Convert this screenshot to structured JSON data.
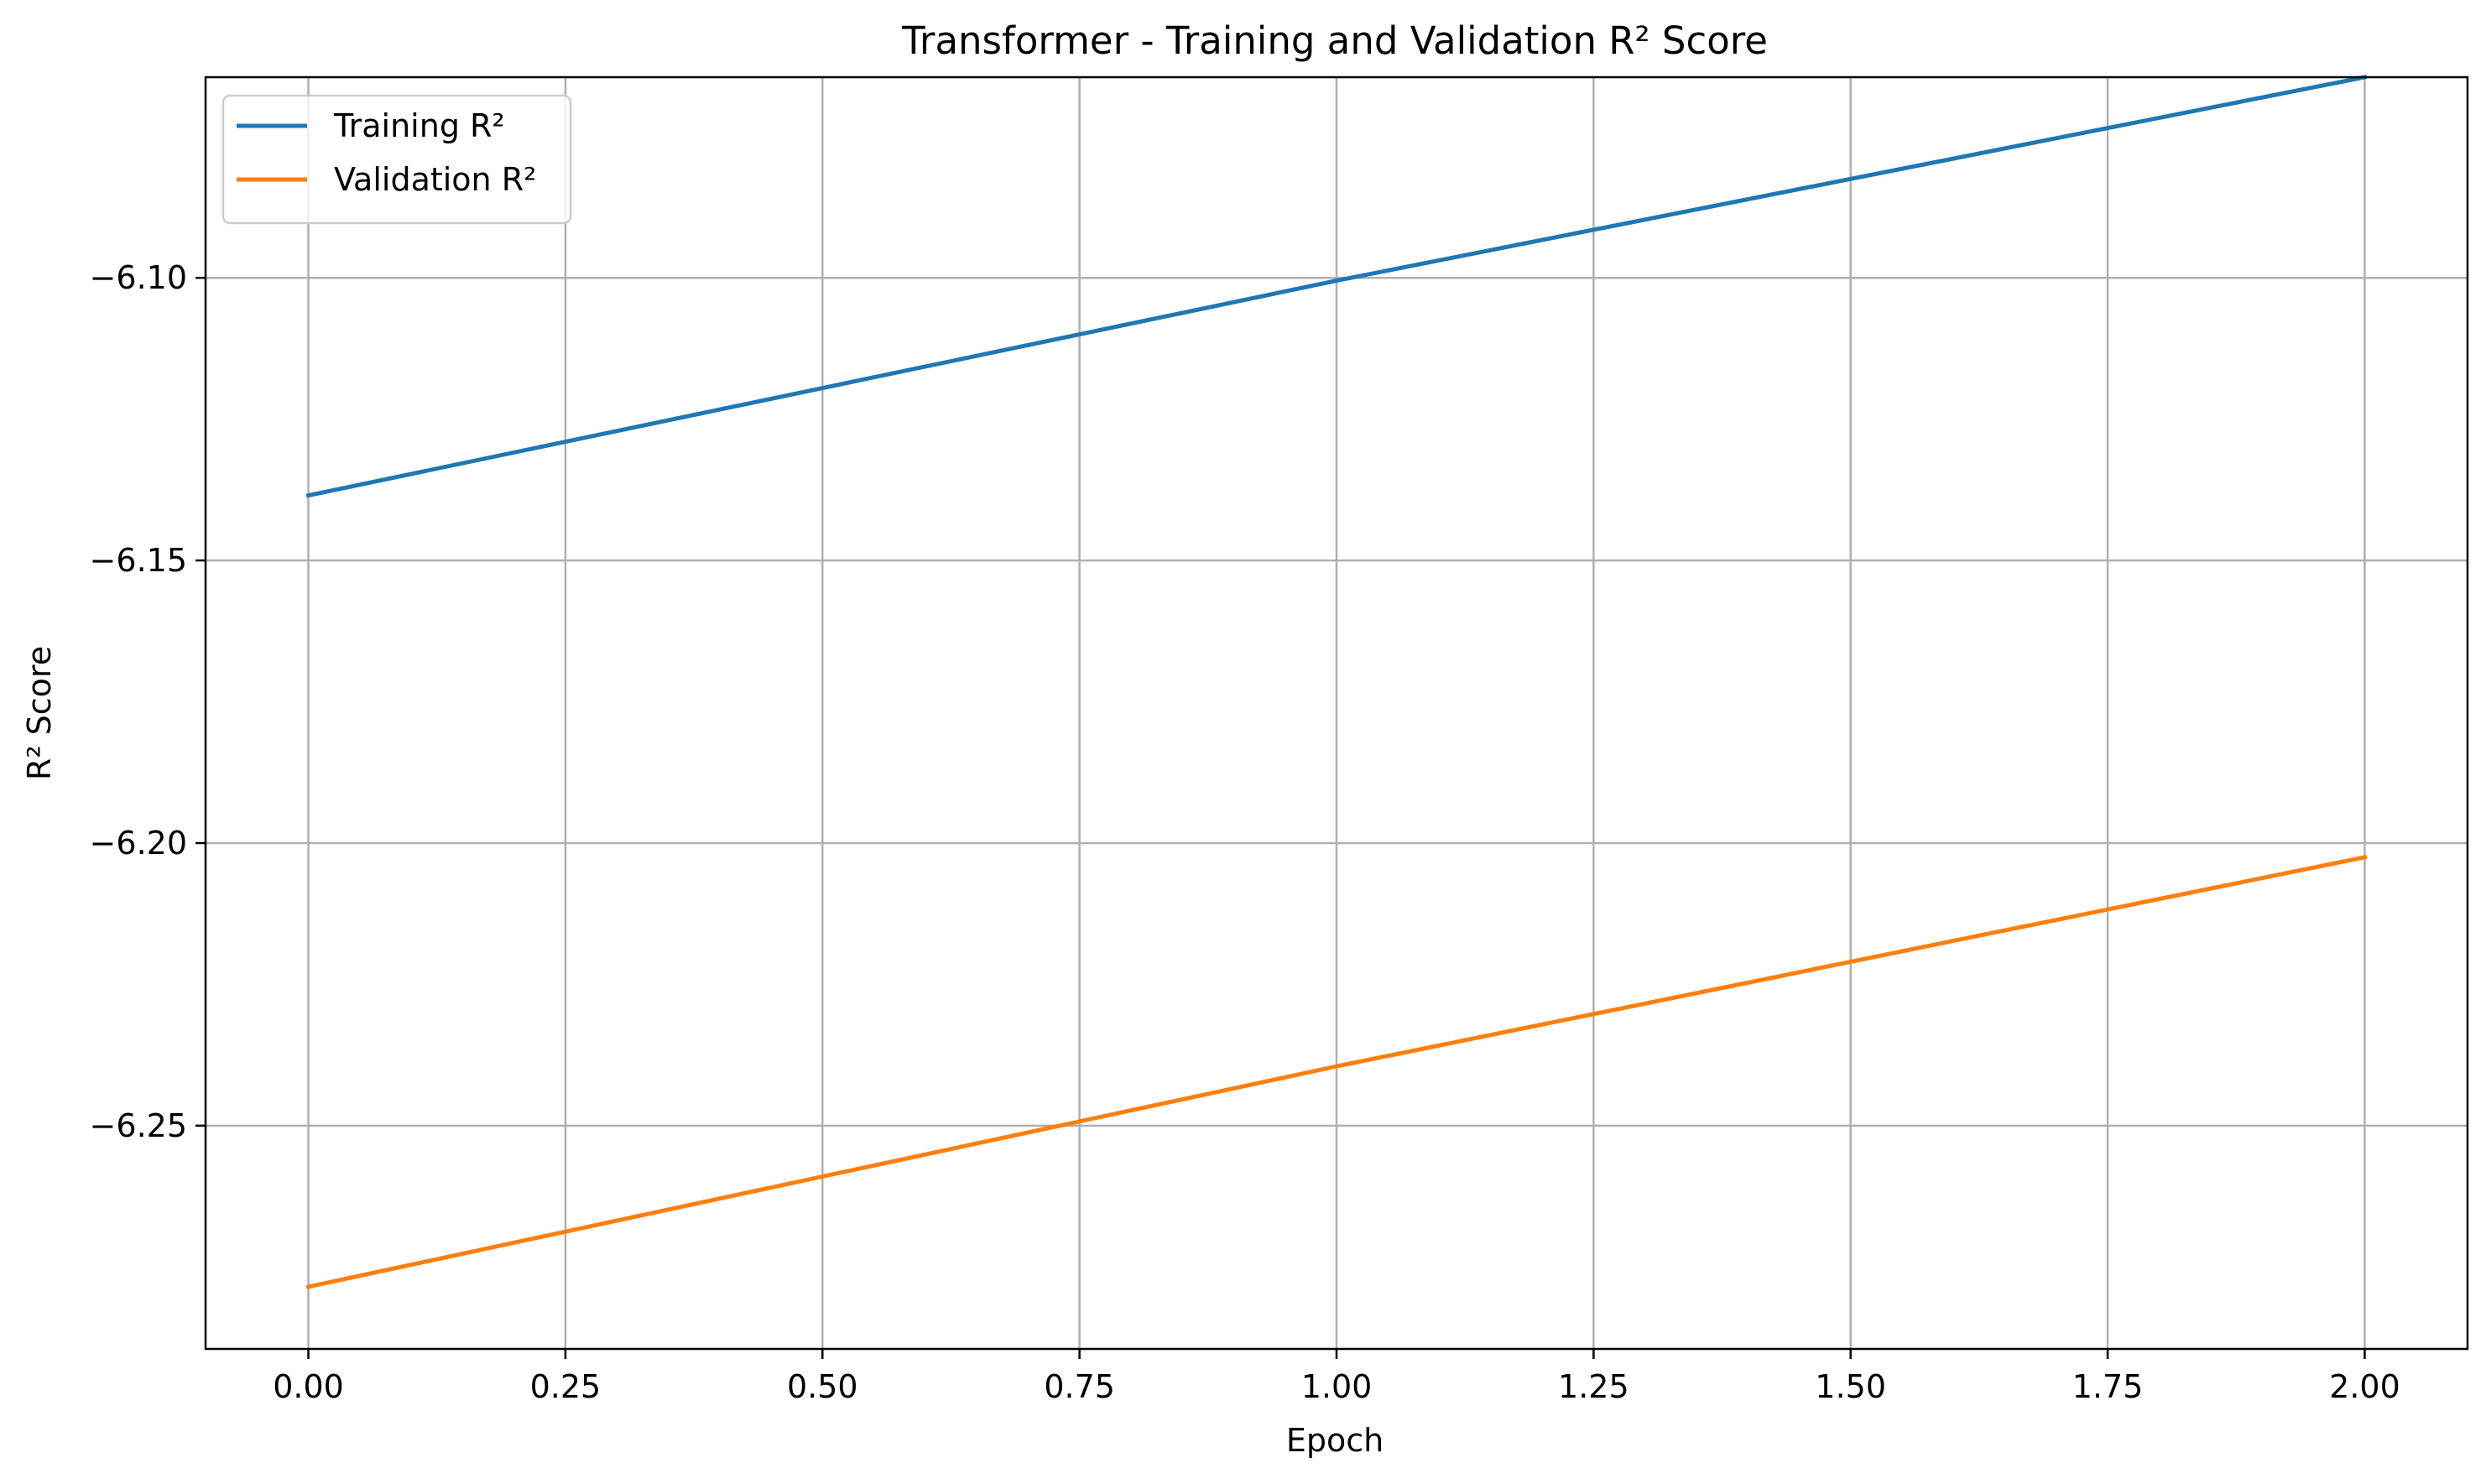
{
  "chart_data": {
    "type": "line",
    "title": "Transformer - Training and Validation R² Score",
    "xlabel": "Epoch",
    "ylabel": "R² Score",
    "xlim": [
      -0.1,
      2.1
    ],
    "ylim": [
      -6.2895,
      -6.0645
    ],
    "xticks": [
      0.0,
      0.25,
      0.5,
      0.75,
      1.0,
      1.25,
      1.5,
      1.75,
      2.0
    ],
    "xtick_labels": [
      "0.00",
      "0.25",
      "0.50",
      "0.75",
      "1.00",
      "1.25",
      "1.50",
      "1.75",
      "2.00"
    ],
    "yticks": [
      -6.1,
      -6.15,
      -6.2,
      -6.25
    ],
    "ytick_labels": [
      "−6.10",
      "−6.15",
      "−6.20",
      "−6.25"
    ],
    "grid": true,
    "legend_position": "upper-left",
    "x": [
      0,
      1,
      2
    ],
    "series": [
      {
        "name": "Training R²",
        "color": "#1f77b4",
        "values": [
          -6.1385,
          -6.1005,
          -6.0645
        ]
      },
      {
        "name": "Validation R²",
        "color": "#ff7f0e",
        "values": [
          -6.2785,
          -6.2395,
          -6.2025
        ]
      }
    ]
  }
}
